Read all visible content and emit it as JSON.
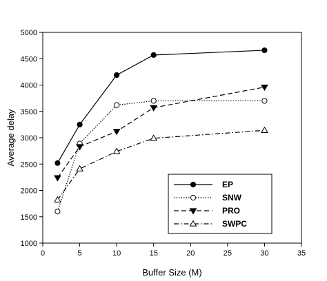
{
  "chart_data": {
    "type": "line",
    "title": "",
    "xlabel": "Buffer Size (M)",
    "ylabel": "Average delay",
    "xlim": [
      0,
      35
    ],
    "ylim": [
      1000,
      5000
    ],
    "xticks": [
      0,
      5,
      10,
      15,
      20,
      25,
      30,
      35
    ],
    "yticks": [
      1000,
      1500,
      2000,
      2500,
      3000,
      3500,
      4000,
      4500,
      5000
    ],
    "grid": false,
    "legend_position": "bottom-right",
    "x": [
      2,
      5,
      10,
      15,
      30
    ],
    "series": [
      {
        "name": "EP",
        "values": [
          2520,
          3250,
          4190,
          4570,
          4660
        ],
        "marker": "filled-circle",
        "line": "solid",
        "color": "#000000"
      },
      {
        "name": "SNW",
        "values": [
          1600,
          2890,
          3620,
          3700,
          3700
        ],
        "marker": "open-circle",
        "line": "dotted",
        "color": "#000000"
      },
      {
        "name": "PRO",
        "values": [
          2240,
          2830,
          3120,
          3570,
          3960
        ],
        "marker": "filled-triangle-down",
        "line": "dashed",
        "color": "#000000"
      },
      {
        "name": "SWPC",
        "values": [
          1820,
          2410,
          2740,
          2990,
          3140
        ],
        "marker": "open-triangle-up",
        "line": "dash-dot",
        "color": "#000000"
      }
    ]
  }
}
